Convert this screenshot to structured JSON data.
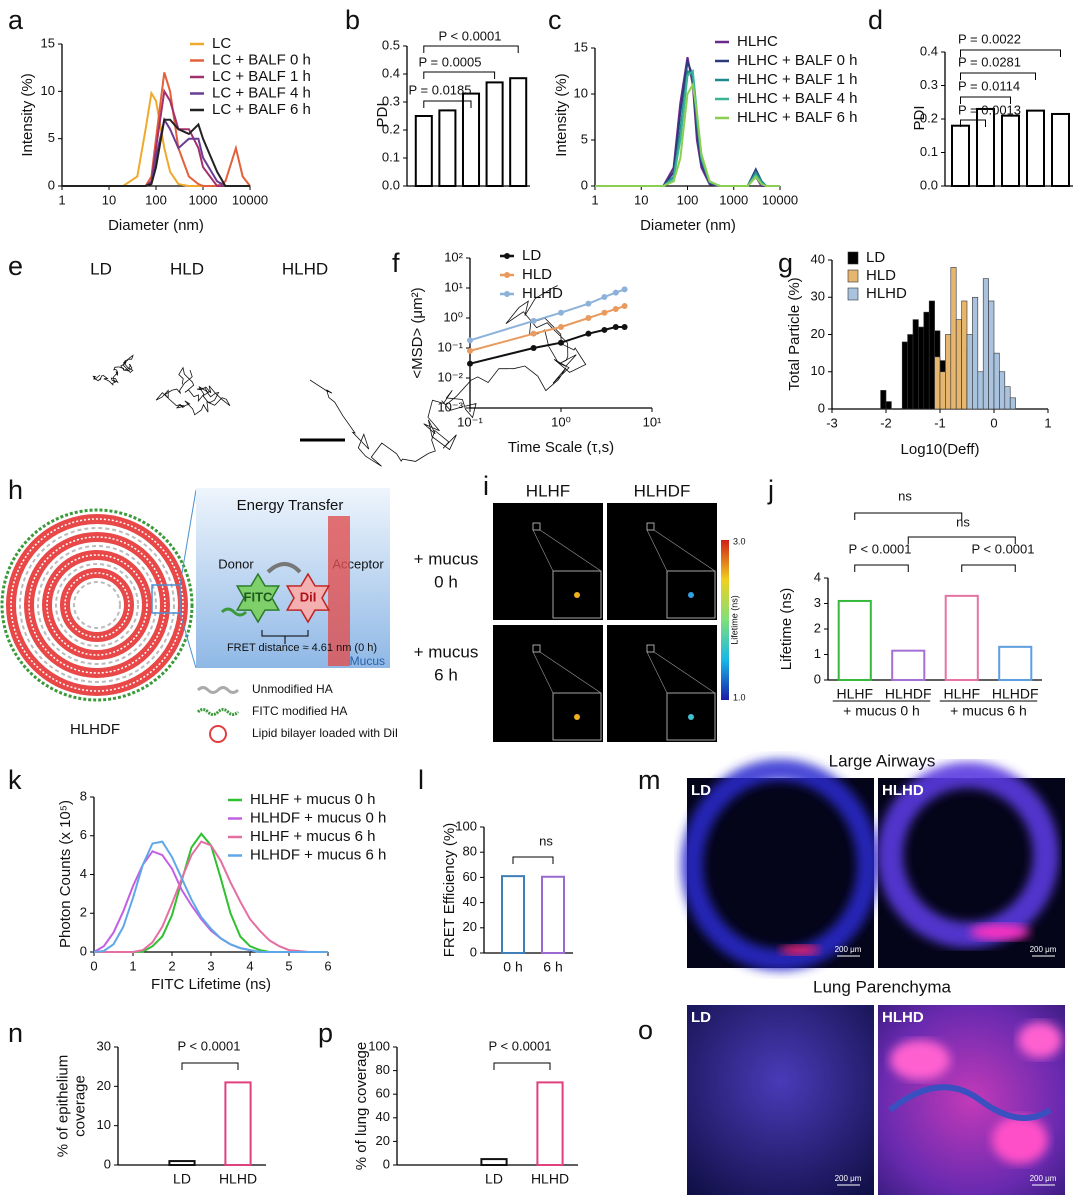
{
  "chart_data": [
    {
      "panel": "a",
      "type": "line",
      "xlog": true,
      "ylabel": "Intensity (%)",
      "xlabel": "Diameter (nm)",
      "x": [
        1,
        10,
        20,
        40,
        60,
        80,
        100,
        150,
        200,
        300,
        500,
        800,
        1000,
        2000,
        3000,
        5000,
        7000,
        10000
      ],
      "series": [
        {
          "name": "LC",
          "color": "#f0a92e",
          "values": [
            0,
            0,
            0,
            1,
            6,
            9.8,
            9,
            4,
            1.5,
            0.2,
            0,
            0,
            0,
            0,
            0,
            0,
            0,
            0
          ]
        },
        {
          "name": "LC + BALF 0 h",
          "color": "#e2603a",
          "values": [
            0,
            0,
            0,
            0,
            0,
            1,
            5,
            12,
            10,
            4,
            1,
            0.2,
            0,
            0,
            0.5,
            4,
            1,
            0
          ]
        },
        {
          "name": "LC + BALF 1 h",
          "color": "#a3306c",
          "values": [
            0,
            0,
            0,
            0,
            0,
            0.5,
            4,
            10,
            9,
            6,
            6,
            4,
            2,
            0,
            0,
            0,
            0,
            0
          ]
        },
        {
          "name": "LC + BALF 4 h",
          "color": "#6b3c94",
          "values": [
            0,
            0,
            0,
            0,
            0,
            0.3,
            3,
            7,
            6,
            4,
            5,
            5,
            3,
            0.5,
            0,
            0,
            0,
            0
          ]
        },
        {
          "name": "LC + BALF 6 h",
          "color": "#222222",
          "values": [
            0,
            0,
            0,
            0,
            0,
            0.2,
            2,
            7,
            7,
            6,
            5.5,
            6.5,
            5,
            1.5,
            0,
            0,
            0,
            0
          ]
        }
      ],
      "xlim": [
        1,
        10000
      ],
      "xticks": [
        1,
        10,
        100,
        1000,
        10000
      ],
      "ylim": [
        0,
        15
      ],
      "yticks": [
        0,
        5,
        10,
        15
      ]
    },
    {
      "panel": "b",
      "type": "bar",
      "ylabel": "PDI",
      "categories": [
        null,
        null,
        null,
        null,
        null
      ],
      "values": [
        0.25,
        0.27,
        0.33,
        0.37,
        0.385
      ],
      "color": "#000000",
      "ylim": [
        0,
        0.5
      ],
      "yticks": [
        {
          "value": 0,
          "label": "0.0"
        },
        0.1,
        0.2,
        0.3,
        0.4,
        0.5
      ],
      "annotations": [
        "P < 0.0001",
        "P = 0.0005",
        "P = 0.0185"
      ]
    },
    {
      "panel": "c",
      "type": "line",
      "xlog": true,
      "ylabel": "Intensity (%)",
      "xlabel": "Diameter (nm)",
      "x": [
        1,
        10,
        30,
        50,
        70,
        100,
        130,
        160,
        200,
        300,
        500,
        1000,
        2000,
        3000,
        4000,
        5000,
        10000
      ],
      "series": [
        {
          "name": "HLHC",
          "color": "#6a2a8c",
          "values": [
            0,
            0,
            0,
            2,
            9,
            14,
            11,
            5,
            2,
            0.2,
            0,
            0,
            0,
            1,
            0,
            0,
            0
          ]
        },
        {
          "name": "HLHC + BALF 0 h",
          "color": "#2b3b7c",
          "values": [
            0,
            0,
            0,
            1.5,
            8,
            13.5,
            12,
            6,
            2.5,
            0.3,
            0,
            0,
            0,
            1.8,
            0.5,
            0,
            0
          ]
        },
        {
          "name": "HLHC + BALF 1 h",
          "color": "#1c8a8c",
          "values": [
            0,
            0,
            0,
            1,
            6,
            12.5,
            12,
            7,
            3,
            0.4,
            0,
            0,
            0,
            1.5,
            0.5,
            0,
            0
          ]
        },
        {
          "name": "HLHC + BALF 4 h",
          "color": "#3cb394",
          "values": [
            0,
            0,
            0,
            0.8,
            5,
            12,
            12.5,
            8,
            3,
            0.5,
            0,
            0,
            0,
            1.2,
            0.3,
            0,
            0
          ]
        },
        {
          "name": "HLHC + BALF 6 h",
          "color": "#8bcf52",
          "values": [
            0,
            0,
            0,
            0.5,
            3,
            10,
            11,
            8,
            3.5,
            0.5,
            0,
            0,
            0,
            1,
            0.2,
            0,
            0
          ]
        }
      ],
      "xlim": [
        1,
        10000
      ],
      "xticks": [
        1,
        10,
        100,
        1000,
        10000
      ],
      "ylim": [
        0,
        15
      ],
      "yticks": [
        0,
        5,
        10,
        15
      ]
    },
    {
      "panel": "d",
      "type": "bar",
      "ylabel": "PDI",
      "categories": [
        null,
        null,
        null,
        null,
        null
      ],
      "values": [
        0.18,
        0.23,
        0.21,
        0.225,
        0.215
      ],
      "color": "#000000",
      "ylim": [
        0,
        0.4
      ],
      "yticks": [
        {
          "value": 0,
          "label": "0.0"
        },
        0.1,
        0.2,
        0.3,
        0.4
      ],
      "annotations": [
        "P = 0.0022",
        "P = 0.0281",
        "P = 0.0114",
        "P = 0.0013"
      ]
    },
    {
      "panel": "f",
      "type": "line",
      "markers": true,
      "xlog": true,
      "ylog": true,
      "ylabel": "<MSD> (μm²)",
      "xlabel": "Time Scale (τ,s)",
      "x": [
        0.1,
        0.5,
        1,
        2,
        3,
        4,
        5
      ],
      "series": [
        {
          "name": "LD",
          "color": "#111111",
          "values": [
            0.03,
            0.1,
            0.15,
            0.3,
            0.4,
            0.5,
            0.5
          ]
        },
        {
          "name": "HLD",
          "color": "#e99a5e",
          "values": [
            0.08,
            0.3,
            0.5,
            1,
            1.5,
            2,
            2.5
          ]
        },
        {
          "name": "HLHD",
          "color": "#8db2da",
          "values": [
            0.18,
            0.8,
            1.5,
            3,
            5,
            7,
            9
          ]
        }
      ],
      "xlim": [
        0.1,
        10
      ],
      "xticks": [
        {
          "value": 0.1,
          "label": "10⁻¹"
        },
        {
          "value": 1,
          "label": "10⁰"
        },
        {
          "value": 10,
          "label": "10¹"
        }
      ],
      "ylim": [
        0.001,
        100
      ],
      "yticks": [
        {
          "value": 0.001,
          "label": "10⁻³"
        },
        {
          "value": 0.01,
          "label": "10⁻²"
        },
        {
          "value": 0.1,
          "label": "10⁻¹"
        },
        {
          "value": 1,
          "label": "10⁰"
        },
        {
          "value": 10,
          "label": "10¹"
        },
        {
          "value": 100,
          "label": "10²"
        }
      ]
    },
    {
      "panel": "g",
      "type": "histogram",
      "ylabel": "Total Particle (%)",
      "xlabel": "Log10(Deff)",
      "bins": [
        -2.2,
        -2.1,
        -2.0,
        -1.9,
        -1.8,
        -1.7,
        -1.6,
        -1.5,
        -1.4,
        -1.3,
        -1.2,
        -1.1,
        -1.0,
        -0.9,
        -0.8,
        -0.7,
        -0.6,
        -0.5,
        -0.4,
        -0.3,
        -0.2,
        -0.1,
        0.0,
        0.1,
        0.2,
        0.3,
        0.4,
        0.5
      ],
      "series": [
        {
          "name": "LD",
          "color": "#000000",
          "values": [
            0,
            5,
            2,
            0,
            0,
            18,
            20,
            24,
            22,
            26,
            29,
            21,
            13,
            8,
            2,
            0,
            0,
            0,
            0,
            0,
            0,
            0,
            0,
            0,
            0,
            0,
            0
          ]
        },
        {
          "name": "HLD",
          "color": "#e6b56e",
          "values": [
            0,
            0,
            0,
            0,
            0,
            0,
            0,
            0,
            0,
            0,
            0,
            14,
            10,
            20,
            38,
            24,
            29,
            16,
            4,
            0,
            0,
            0,
            0,
            0,
            0,
            0,
            0
          ]
        },
        {
          "name": "HLHD",
          "color": "#a9c3df",
          "values": [
            0,
            0,
            0,
            0,
            0,
            0,
            0,
            0,
            0,
            0,
            0,
            0,
            0,
            0,
            0,
            0,
            0,
            20,
            30,
            10,
            35,
            29,
            15,
            10,
            6,
            3,
            0
          ]
        }
      ],
      "xlim": [
        -3,
        1
      ],
      "xticks": [
        -3,
        -2,
        -1,
        0,
        1
      ],
      "ylim": [
        0,
        40
      ],
      "yticks": [
        0,
        10,
        20,
        30,
        40
      ]
    },
    {
      "panel": "j",
      "type": "bar",
      "ylabel": "Lifetime (ns)",
      "categories": [
        "HLHF",
        "HLHDF",
        "HLHF",
        "HLHDF"
      ],
      "groups": [
        "+ mucus 0 h",
        "+ mucus 6 h"
      ],
      "values": [
        3.1,
        1.15,
        3.3,
        1.3
      ],
      "colors": [
        "#35b93a",
        "#a56fd6",
        "#e473a4",
        "#5e9fe0"
      ],
      "ylim": [
        0,
        4
      ],
      "yticks": [
        0,
        1,
        2,
        3,
        4
      ],
      "annotations": [
        "ns",
        "ns",
        "P < 0.0001",
        "P < 0.0001"
      ]
    },
    {
      "panel": "k",
      "type": "line",
      "ylabel": "Photon Counts (x 10⁵)",
      "xlabel": "FITC Lifetime (ns)",
      "x": [
        0,
        0.25,
        0.5,
        0.75,
        1,
        1.25,
        1.5,
        1.75,
        2,
        2.25,
        2.5,
        2.75,
        3,
        3.25,
        3.5,
        3.75,
        4,
        4.25,
        4.5,
        4.75,
        5,
        5.25,
        5.5,
        5.75,
        6
      ],
      "series": [
        {
          "name": "HLHF + mucus 0 h",
          "color": "#2fc02f",
          "values": [
            0,
            0,
            0,
            0,
            0,
            0.02,
            0.3,
            0.8,
            1.9,
            3.7,
            5.4,
            6.1,
            5.5,
            3.8,
            2,
            0.8,
            0.3,
            0.1,
            0,
            0,
            0,
            0,
            0,
            0,
            0
          ]
        },
        {
          "name": "HLHDF + mucus 0 h",
          "color": "#c35fe3",
          "values": [
            0,
            0.3,
            1,
            2.1,
            3.4,
            4.5,
            5.2,
            5,
            4.3,
            3.2,
            2.4,
            1.7,
            1.1,
            0.7,
            0.4,
            0.2,
            0.1,
            0,
            0,
            0,
            0,
            0,
            0,
            0,
            0
          ]
        },
        {
          "name": "HLHF + mucus 6 h",
          "color": "#e56fa1",
          "values": [
            0,
            0,
            0,
            0,
            0,
            0.1,
            0.5,
            1.3,
            2.5,
            3.8,
            5,
            5.7,
            5.5,
            4.7,
            3.6,
            2.6,
            1.7,
            1.1,
            0.6,
            0.3,
            0.1,
            0.05,
            0,
            0,
            0
          ]
        },
        {
          "name": "HLHDF + mucus 6 h",
          "color": "#5fa8e8",
          "values": [
            0,
            0.05,
            0.4,
            1.3,
            2.8,
            4.5,
            5.6,
            5.7,
            4.9,
            3.8,
            2.7,
            1.8,
            1.2,
            0.7,
            0.4,
            0.2,
            0.1,
            0,
            0,
            0,
            0,
            0,
            0,
            0,
            0
          ]
        }
      ],
      "xlim": [
        0,
        6
      ],
      "xticks": [
        0,
        1,
        2,
        3,
        4,
        5,
        6
      ],
      "ylim": [
        0,
        8
      ],
      "yticks": [
        0,
        2,
        4,
        6,
        8
      ]
    },
    {
      "panel": "l",
      "type": "bar",
      "ylabel": "FRET Efficiency (%)",
      "categories": [
        "0 h",
        "6 h"
      ],
      "values": [
        61,
        60.5
      ],
      "colors": [
        "#3f7fb8",
        "#9a6ad0"
      ],
      "ylim": [
        0,
        100
      ],
      "yticks": [
        0,
        20,
        40,
        60,
        80,
        100
      ],
      "annotations": [
        "ns"
      ]
    },
    {
      "panel": "n",
      "type": "bar",
      "ylabel": [
        "% of epithelium",
        "coverage"
      ],
      "categories": [
        "LD",
        "HLHD"
      ],
      "values": [
        1,
        21
      ],
      "colors": [
        "#111111",
        "#e0407e"
      ],
      "ylim": [
        0,
        30
      ],
      "yticks": [
        0,
        10,
        20,
        30
      ],
      "annotations": [
        "P < 0.0001"
      ]
    },
    {
      "panel": "p",
      "type": "bar",
      "ylabel": "% of lung coverage",
      "categories": [
        "LD",
        "HLHD"
      ],
      "values": [
        5,
        70
      ],
      "colors": [
        "#111111",
        "#e0407e"
      ],
      "ylim": [
        0,
        100
      ],
      "yticks": [
        0,
        20,
        40,
        60,
        80,
        100
      ],
      "annotations": [
        "P < 0.0001"
      ]
    }
  ],
  "panel_e": {
    "panel": "e",
    "labels": [
      "LD",
      "HLD",
      "HLHD"
    ]
  },
  "panel_h": {
    "panel": "h",
    "title": "Energy Transfer",
    "donor": "Donor",
    "acceptor": "Acceptor",
    "fitc": "FITC",
    "dii": "DiI",
    "distance": "FRET distance ≈ 4.61 nm (0 h)",
    "mucus": "Mucus",
    "name": "HLHDF",
    "legend": [
      "Unmodified HA",
      "FITC modified HA",
      "Lipid bilayer loaded with DiI"
    ]
  },
  "panel_i": {
    "panel": "i",
    "columns": [
      "HLHF",
      "HLHDF"
    ],
    "rows": [
      [
        "+ mucus",
        "0 h"
      ],
      [
        "+ mucus",
        "6 h"
      ]
    ],
    "colorbar": {
      "max": "3.0",
      "min": "1.0",
      "label": "Lifetime (ns)"
    }
  },
  "panel_m": {
    "panel": "m",
    "title": "Large Airways",
    "labels": [
      "LD",
      "HLHD"
    ],
    "scale": [
      "200 μm",
      "200 μm"
    ]
  },
  "panel_o": {
    "panel": "o",
    "title": "Lung Parenchyma",
    "labels": [
      "LD",
      "HLHD"
    ],
    "scale": [
      "200 μm",
      "200 μm"
    ]
  }
}
